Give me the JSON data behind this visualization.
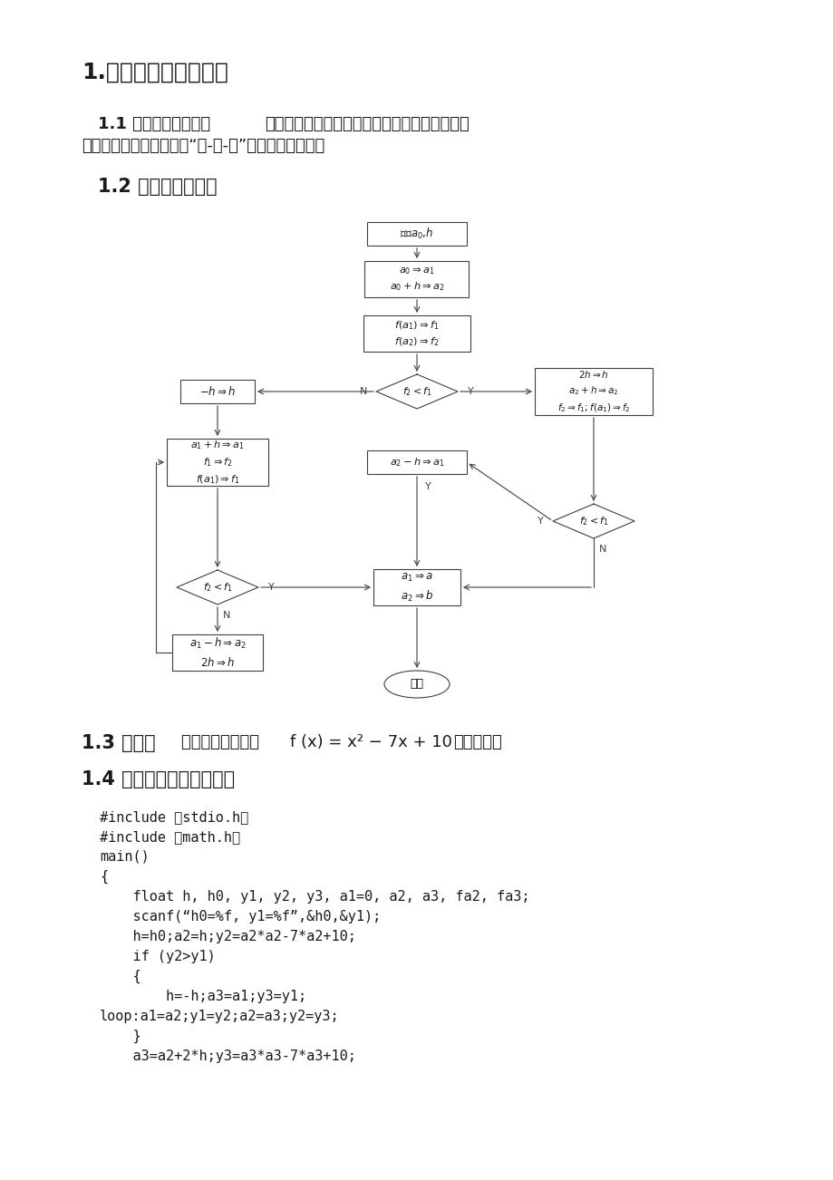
{
  "bg_color": "#ffffff",
  "title1": "1.进退法确定初始区间",
  "sec11_bold": "1.1 进退法基本思路：",
  "sec11_rest": "按照一定的规则试算若干个点，比较其函数值的",
  "sec11_line2": "大小，直至找到函数值按“高-低-高”变化的单峰区间。",
  "sec12": "1.2 进退法程序框图",
  "sec13_bold": "1.3 题目：",
  "sec13_rest": "用进退法求解函数 ",
  "sec13_math": "f (x) = x² − 7x + 10",
  "sec13_tail": "的搜索区间",
  "sec14": "1.4 源程序代码及运行结果",
  "code": [
    "#include ＜stdio.h＞",
    "#include ＜math.h＞",
    "main()",
    "{",
    "    float h, h0, y1, y2, y3, a1=0, a2, a3, fa2, fa3;",
    "    scanf(“h0=%f, y1=%f”,&h0,&y1);",
    "    h=h0;a2=h;y2=a2*a2-7*a2+10;",
    "    if (y2>y1)",
    "    {",
    "        h=-h;a3=a1;y3=y1;",
    "loop:a1=a2;y1=y2;a2=a3;y2=y3;",
    "    }",
    "    a3=a2+2*h;y3=a3*a3-7*a3+10;"
  ]
}
